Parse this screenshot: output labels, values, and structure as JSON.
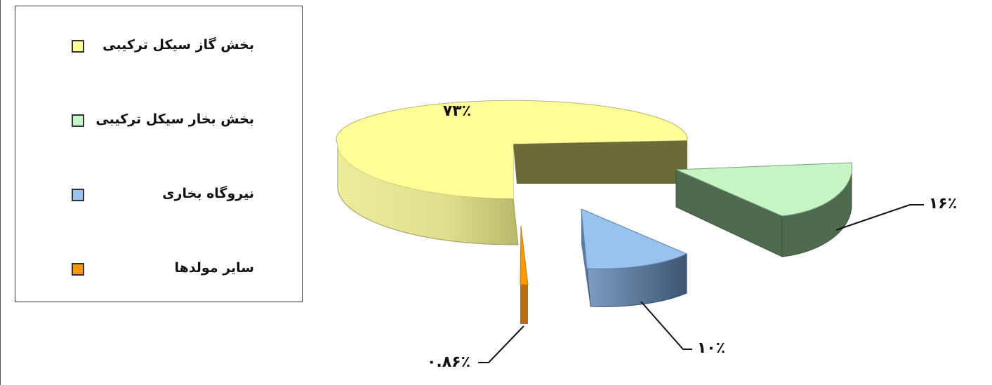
{
  "chart_data": {
    "type": "pie",
    "style": "3d-exploded",
    "slices": [
      {
        "label": "بخش گاز  سیکل ترکیبی",
        "value": 73,
        "display": "۷۳٪",
        "color": "#FFFF99"
      },
      {
        "label": "بخش بخار سیکل ترکیبی",
        "value": 16,
        "display": "۱۶٪",
        "color": "#C6F5C6"
      },
      {
        "label": "نیروگاه بخاری",
        "value": 10,
        "display": "۱۰٪",
        "color": "#99C2F0"
      },
      {
        "label": "سایر مولدها",
        "value": 0.86,
        "display": "۰.۸۶٪",
        "color": "#FF9900"
      }
    ],
    "legend_position": "left"
  }
}
